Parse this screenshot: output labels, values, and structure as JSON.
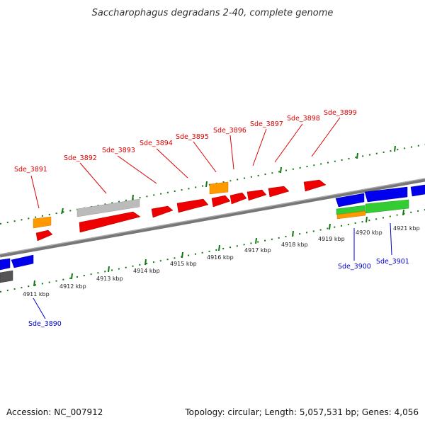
{
  "title": "Saccharophagus degradans 2-40, complete genome",
  "footer": {
    "accession": "Accession: NC_007912",
    "summary": "Topology: circular; Length: 5,057,531 bp; Genes: 4,056"
  },
  "colors": {
    "forward_label": "#dd0000",
    "reverse_label": "#0000cc",
    "ruler_ticks": "#117711",
    "backbone": "#888888",
    "feature_red": "#ee0000",
    "feature_orange": "#ff9900",
    "feature_blue": "#0000ee",
    "feature_green": "#33cc33",
    "feature_gray": "#bbbbbb"
  },
  "ruler_labels": [
    "4911 kbp",
    "4912 kbp",
    "4913 kbp",
    "4914 kbp",
    "4915 kbp",
    "4916 kbp",
    "4917 kbp",
    "4918 kbp",
    "4919 kbp",
    "4920 kbp",
    "4921 kbp"
  ],
  "gene_labels_forward": [
    "Sde_3891",
    "Sde_3892",
    "Sde_3893",
    "Sde_3894",
    "Sde_3895",
    "Sde_3896",
    "Sde_3897",
    "Sde_3898",
    "Sde_3899"
  ],
  "gene_labels_reverse": [
    "Sde_3890",
    "Sde_3900",
    "Sde_3901"
  ]
}
